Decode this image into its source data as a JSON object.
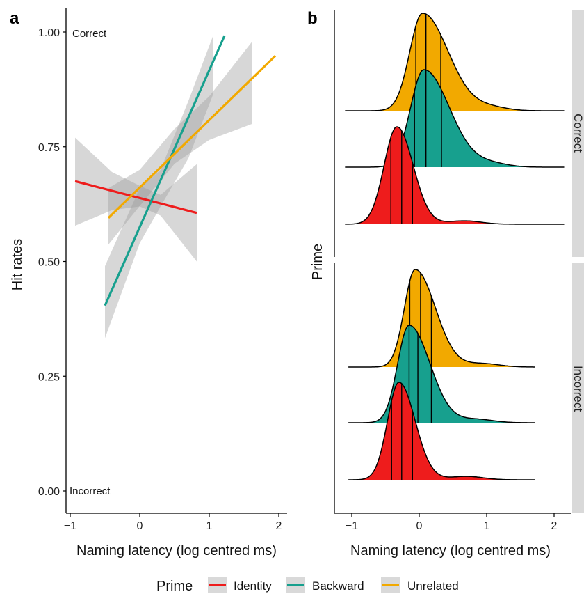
{
  "chart_data": [
    {
      "panel": "a",
      "type": "line",
      "xlabel": "Naming latency (log centred ms)",
      "ylabel": "Hit rates",
      "xlim": [
        -1.05,
        2.1
      ],
      "ylim": [
        -0.04,
        1.05
      ],
      "xticks": [
        -1,
        0,
        1,
        2
      ],
      "xtick_labels": [
        "−1",
        "0",
        "1",
        "2"
      ],
      "yticks": [
        0,
        0.25,
        0.5,
        0.75,
        1.0
      ],
      "ytick_labels": [
        "0.00",
        "0.25",
        "0.50",
        "0.75",
        "1.00"
      ],
      "annotations": {
        "top": "Correct",
        "bottom": "Incorrect"
      },
      "series": [
        {
          "name": "Identity",
          "color": "#ee1c1c",
          "x": [
            -0.93,
            0.82
          ],
          "y": [
            0.675,
            0.606
          ],
          "ci_x": [
            -0.93,
            -0.4,
            0.0,
            0.3,
            0.82
          ],
          "ci_lower": [
            0.578,
            0.612,
            0.62,
            0.6,
            0.5
          ],
          "ci_upper": [
            0.77,
            0.695,
            0.665,
            0.645,
            0.712
          ]
        },
        {
          "name": "Backward",
          "color": "#17a08e",
          "x": [
            -0.5,
            1.22
          ],
          "y": [
            0.404,
            0.992
          ],
          "ci_x": [
            -0.5,
            0.0,
            0.3,
            0.7,
            1.05
          ],
          "ci_lower": [
            0.333,
            0.54,
            0.62,
            0.725,
            0.862
          ],
          "ci_upper": [
            0.49,
            0.66,
            0.7,
            0.85,
            0.99
          ]
        },
        {
          "name": "Unrelated",
          "color": "#f2a900",
          "x": [
            -0.45,
            1.95
          ],
          "y": [
            0.595,
            0.948
          ],
          "ci_x": [
            -0.45,
            0.0,
            0.5,
            1.0,
            1.62
          ],
          "ci_lower": [
            0.537,
            0.621,
            0.713,
            0.765,
            0.8
          ],
          "ci_upper": [
            0.66,
            0.7,
            0.789,
            0.86,
            0.98
          ]
        }
      ]
    },
    {
      "panel": "b",
      "type": "area",
      "subtype": "ridgeline density with quartile lines",
      "xlabel": "Naming latency (log centred ms)",
      "ylabel": "Prime",
      "xlim": [
        -1.2,
        2.3
      ],
      "xticks": [
        -1,
        0,
        1,
        2
      ],
      "xtick_labels": [
        "−1",
        "0",
        "1",
        "2"
      ],
      "facets": [
        {
          "label": "Correct",
          "ridges": [
            {
              "name": "Unrelated",
              "color": "#f2a900",
              "x_min": -1.1,
              "x_max": 2.15,
              "mode": 0.05,
              "sd_left": 0.19,
              "sd_right": 0.38,
              "quartiles": [
                -0.05,
                0.1,
                0.32
              ]
            },
            {
              "name": "Backward",
              "color": "#17a08e",
              "x_min": -1.1,
              "x_max": 2.15,
              "mode": 0.07,
              "sd_left": 0.2,
              "sd_right": 0.38,
              "quartiles": [
                -0.07,
                0.1,
                0.33
              ]
            },
            {
              "name": "Identity",
              "color": "#ee1c1c",
              "x_min": -1.1,
              "x_max": 2.15,
              "mode": -0.33,
              "sd_left": 0.19,
              "sd_right": 0.24,
              "quartiles": [
                -0.42,
                -0.26,
                -0.1
              ]
            }
          ]
        },
        {
          "label": "Incorrect",
          "ridges": [
            {
              "name": "Unrelated",
              "color": "#f2a900",
              "x_min": -1.05,
              "x_max": 1.72,
              "mode": -0.06,
              "sd_left": 0.16,
              "sd_right": 0.3,
              "quartiles": [
                -0.14,
                0.02,
                0.18
              ]
            },
            {
              "name": "Backward",
              "color": "#17a08e",
              "x_min": -1.05,
              "x_max": 1.72,
              "mode": -0.15,
              "sd_left": 0.17,
              "sd_right": 0.31,
              "quartiles": [
                -0.15,
                -0.02,
                0.18
              ]
            },
            {
              "name": "Identity",
              "color": "#ee1c1c",
              "x_min": -1.05,
              "x_max": 1.72,
              "mode": -0.3,
              "sd_left": 0.17,
              "sd_right": 0.24,
              "quartiles": [
                -0.41,
                -0.26,
                -0.1
              ]
            }
          ]
        }
      ]
    }
  ],
  "legend": {
    "title": "Prime",
    "items": [
      {
        "label": "Identity",
        "color": "#ee1c1c"
      },
      {
        "label": "Backward",
        "color": "#17a08e"
      },
      {
        "label": "Unrelated",
        "color": "#f2a900"
      }
    ]
  },
  "panel_letters": [
    "a",
    "b"
  ]
}
